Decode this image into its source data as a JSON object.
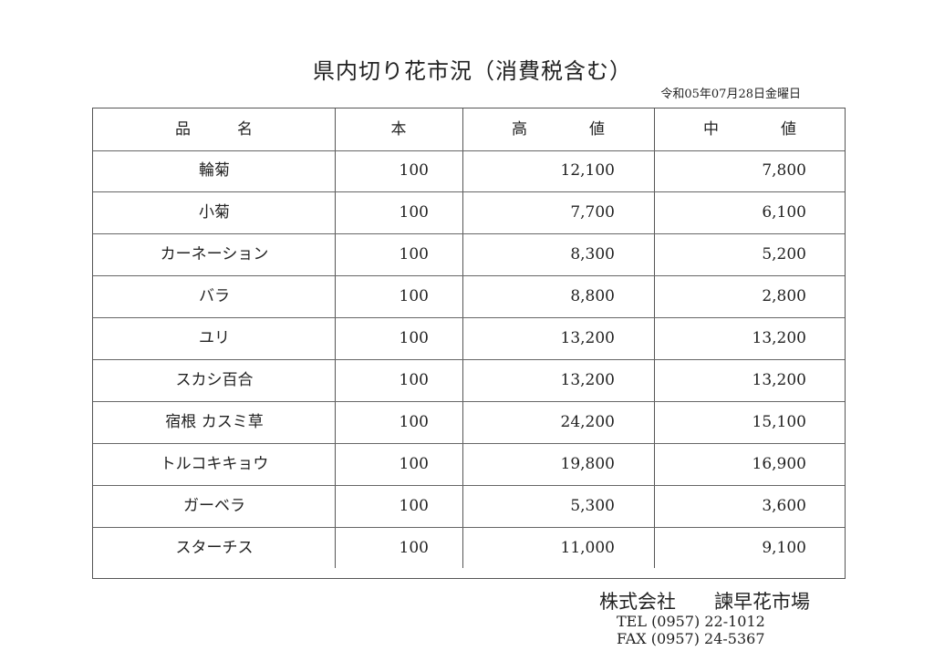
{
  "title": "県内切り花市況（消費税含む）",
  "date": "令和05年07月28日金曜日",
  "table": {
    "headers": [
      "品　　　名",
      "本",
      "高　　　　値",
      "中　　　　値"
    ],
    "rows": [
      {
        "name": "輪菊",
        "count": "100",
        "high": "12,100",
        "mid": "7,800"
      },
      {
        "name": "小菊",
        "count": "100",
        "high": "7,700",
        "mid": "6,100"
      },
      {
        "name": "カーネーション",
        "count": "100",
        "high": "8,300",
        "mid": "5,200"
      },
      {
        "name": "バラ",
        "count": "100",
        "high": "8,800",
        "mid": "2,800"
      },
      {
        "name": "ユリ",
        "count": "100",
        "high": "13,200",
        "mid": "13,200"
      },
      {
        "name": "スカシ百合",
        "count": "100",
        "high": "13,200",
        "mid": "13,200"
      },
      {
        "name": "宿根 カスミ草",
        "count": "100",
        "high": "24,200",
        "mid": "15,100"
      },
      {
        "name": "トルコキキョウ",
        "count": "100",
        "high": "19,800",
        "mid": "16,900"
      },
      {
        "name": "ガーベラ",
        "count": "100",
        "high": "5,300",
        "mid": "3,600"
      },
      {
        "name": "スターチス",
        "count": "100",
        "high": "11,000",
        "mid": "9,100"
      }
    ]
  },
  "footer": {
    "company_type": "株式会社",
    "company_name": "諫早花市場",
    "tel": "TEL (0957) 22-1012",
    "fax": "FAX (0957) 24-5367"
  }
}
